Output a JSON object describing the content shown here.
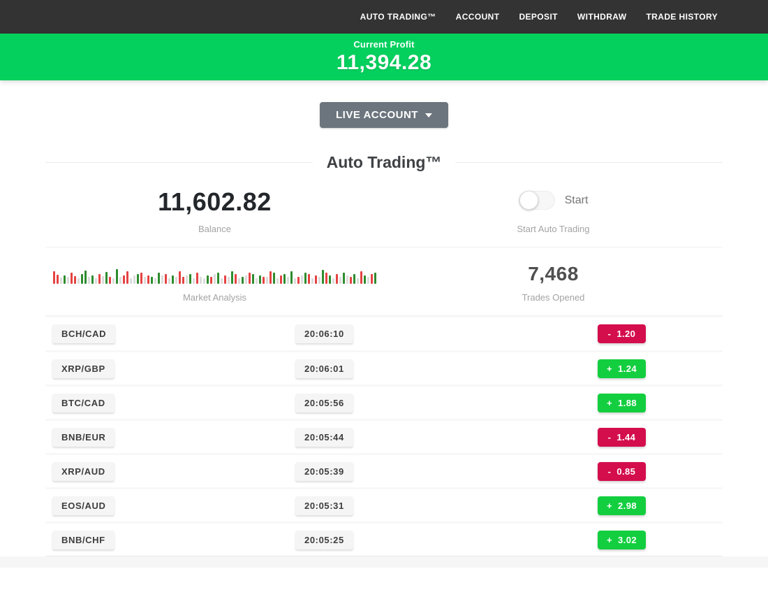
{
  "navbar": {
    "items": [
      {
        "label": "AUTO TRADING™"
      },
      {
        "label": "ACCOUNT"
      },
      {
        "label": "DEPOSIT"
      },
      {
        "label": "WITHDRAW"
      },
      {
        "label": "TRADE HISTORY"
      }
    ]
  },
  "banner": {
    "label": "Current Profit",
    "value": "11,394.28",
    "bg_color": "#04d05e"
  },
  "account_selector": {
    "label": "LIVE ACCOUNT",
    "bg_color": "#6c757d"
  },
  "section": {
    "title": "Auto Trading™"
  },
  "stats": {
    "balance": {
      "value": "11,602.82",
      "label": "Balance"
    },
    "auto_trading": {
      "toggle_label": "Start",
      "label": "Start Auto Trading",
      "toggle_state": "off"
    },
    "market": {
      "label": "Market Analysis"
    },
    "trades_opened": {
      "value": "7,468",
      "label": "Trades Opened"
    }
  },
  "chart_data": {
    "type": "bar",
    "title": "Market Analysis",
    "legend": "decorative mini market bars; colors: r=red candle, g=green candle, n=neutral gray",
    "colors": {
      "r": "#e64242",
      "g": "#2d8c2d",
      "n": "#dcdcdc"
    },
    "bars": [
      [
        "r",
        18
      ],
      [
        "r",
        13
      ],
      [
        "n",
        9
      ],
      [
        "g",
        12
      ],
      [
        "n",
        10
      ],
      [
        "r",
        16
      ],
      [
        "r",
        11
      ],
      [
        "n",
        8
      ],
      [
        "g",
        14
      ],
      [
        "g",
        19
      ],
      [
        "n",
        10
      ],
      [
        "g",
        12
      ],
      [
        "n",
        8
      ],
      [
        "r",
        14
      ],
      [
        "n",
        11
      ],
      [
        "g",
        17
      ],
      [
        "r",
        10
      ],
      [
        "n",
        8
      ],
      [
        "g",
        21
      ],
      [
        "n",
        10
      ],
      [
        "r",
        12
      ],
      [
        "r",
        18
      ],
      [
        "n",
        8
      ],
      [
        "n",
        12
      ],
      [
        "g",
        14
      ],
      [
        "r",
        16
      ],
      [
        "n",
        10
      ],
      [
        "r",
        12
      ],
      [
        "g",
        10
      ],
      [
        "n",
        8
      ],
      [
        "g",
        16
      ],
      [
        "n",
        12
      ],
      [
        "r",
        14
      ],
      [
        "n",
        8
      ],
      [
        "g",
        12
      ],
      [
        "n",
        10
      ],
      [
        "r",
        18
      ],
      [
        "r",
        10
      ],
      [
        "n",
        12
      ],
      [
        "g",
        14
      ],
      [
        "n",
        8
      ],
      [
        "r",
        16
      ],
      [
        "n",
        10
      ],
      [
        "n",
        8
      ],
      [
        "g",
        12
      ],
      [
        "r",
        10
      ],
      [
        "n",
        14
      ],
      [
        "g",
        16
      ],
      [
        "n",
        8
      ],
      [
        "r",
        12
      ],
      [
        "n",
        10
      ],
      [
        "g",
        18
      ],
      [
        "r",
        14
      ],
      [
        "n",
        8
      ],
      [
        "g",
        10
      ],
      [
        "n",
        12
      ],
      [
        "r",
        16
      ],
      [
        "g",
        14
      ],
      [
        "n",
        8
      ],
      [
        "g",
        12
      ],
      [
        "r",
        10
      ],
      [
        "n",
        10
      ],
      [
        "r",
        18
      ],
      [
        "g",
        16
      ],
      [
        "n",
        8
      ],
      [
        "r",
        12
      ],
      [
        "g",
        14
      ],
      [
        "n",
        10
      ],
      [
        "g",
        18
      ],
      [
        "n",
        8
      ],
      [
        "r",
        10
      ],
      [
        "n",
        12
      ],
      [
        "g",
        16
      ],
      [
        "r",
        14
      ],
      [
        "n",
        8
      ],
      [
        "r",
        12
      ],
      [
        "n",
        10
      ],
      [
        "g",
        20
      ],
      [
        "r",
        16
      ],
      [
        "g",
        12
      ],
      [
        "n",
        8
      ],
      [
        "r",
        14
      ],
      [
        "n",
        10
      ],
      [
        "g",
        16
      ],
      [
        "n",
        12
      ],
      [
        "r",
        10
      ],
      [
        "g",
        14
      ],
      [
        "n",
        8
      ],
      [
        "r",
        18
      ],
      [
        "g",
        12
      ],
      [
        "n",
        10
      ],
      [
        "r",
        14
      ],
      [
        "g",
        16
      ]
    ]
  },
  "trades": {
    "gain_color": "#13ce3f",
    "loss_color": "#d40d4d",
    "rows": [
      {
        "pair": "BCH/CAD",
        "time": "20:06:10",
        "sign": "-",
        "value": "1.20",
        "direction": "loss"
      },
      {
        "pair": "XRP/GBP",
        "time": "20:06:01",
        "sign": "+",
        "value": "1.24",
        "direction": "gain"
      },
      {
        "pair": "BTC/CAD",
        "time": "20:05:56",
        "sign": "+",
        "value": "1.88",
        "direction": "gain"
      },
      {
        "pair": "BNB/EUR",
        "time": "20:05:44",
        "sign": "-",
        "value": "1.44",
        "direction": "loss"
      },
      {
        "pair": "XRP/AUD",
        "time": "20:05:39",
        "sign": "-",
        "value": "0.85",
        "direction": "loss"
      },
      {
        "pair": "EOS/AUD",
        "time": "20:05:31",
        "sign": "+",
        "value": "2.98",
        "direction": "gain"
      },
      {
        "pair": "BNB/CHF",
        "time": "20:05:25",
        "sign": "+",
        "value": "3.02",
        "direction": "gain"
      }
    ]
  }
}
